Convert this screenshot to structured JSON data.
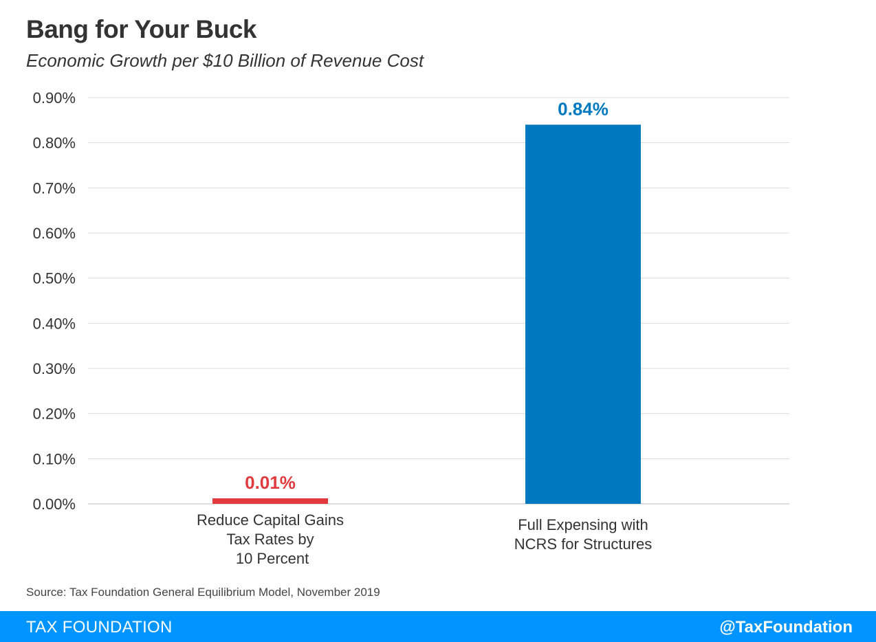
{
  "header": {
    "title": "Bang for Your Buck",
    "subtitle": "Economic Growth per $10 Billion of Revenue Cost"
  },
  "chart_data": {
    "type": "bar",
    "title": "Bang for Your Buck",
    "subtitle": "Economic Growth per $10 Billion of Revenue Cost",
    "categories": [
      [
        "Reduce Capital Gains",
        "Tax Rates by",
        " 10 Percent"
      ],
      [
        "Full Expensing with",
        "NCRS for Structures"
      ]
    ],
    "values": [
      0.01,
      0.84
    ],
    "data_labels": [
      "0.01%",
      "0.84%"
    ],
    "bar_colors": [
      "#e03a3e",
      "#0079c1"
    ],
    "ylim": [
      0,
      0.9
    ],
    "yticks": [
      0.0,
      0.1,
      0.2,
      0.3,
      0.4,
      0.5,
      0.6,
      0.7,
      0.8,
      0.9
    ],
    "ytick_labels": [
      "0.00%",
      "0.10%",
      "0.20%",
      "0.30%",
      "0.40%",
      "0.50%",
      "0.60%",
      "0.70%",
      "0.80%",
      "0.90%"
    ],
    "xlabel": "",
    "ylabel": "",
    "grid": true,
    "legend": "none"
  },
  "footer": {
    "source": "Source: Tax Foundation General Equilibrium Model, November 2019",
    "brand": "TAX FOUNDATION",
    "handle": "@TaxFoundation",
    "color": "#0094ff"
  }
}
